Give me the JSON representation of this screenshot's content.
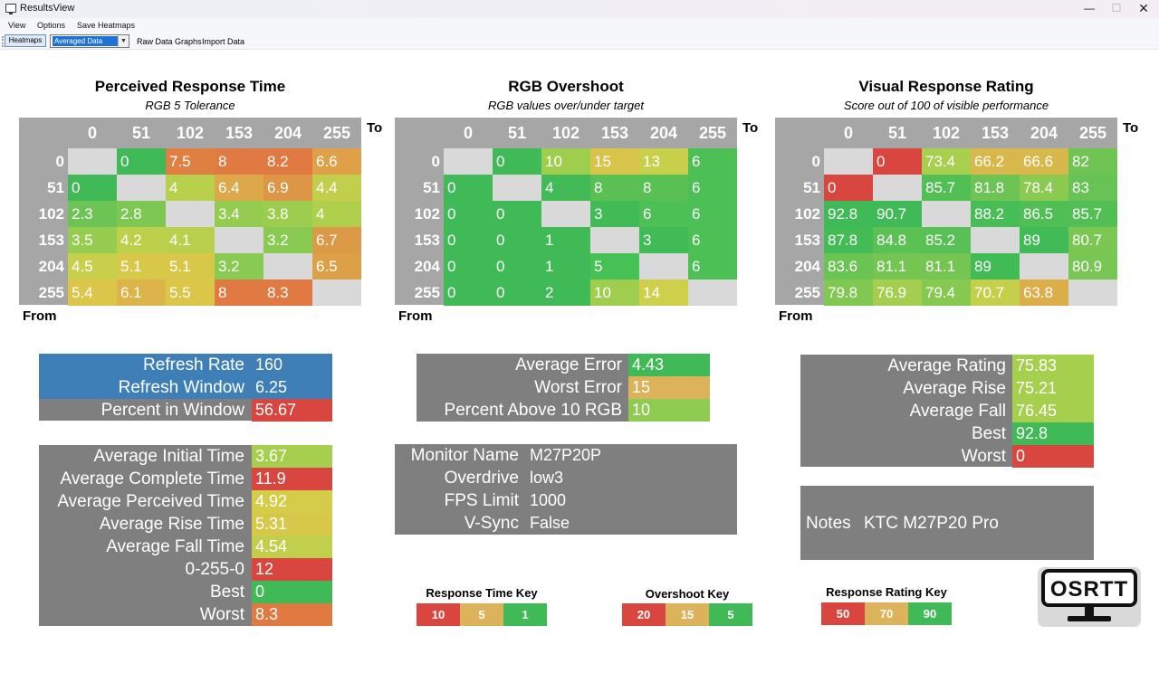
{
  "window": {
    "title": "ResultsView",
    "min": "—",
    "max": "☐",
    "close": "✕"
  },
  "menu": {
    "view": "View",
    "options": "Options",
    "save": "Save Heatmaps"
  },
  "toolbar": {
    "heatmaps": "Heatmaps",
    "select_value": "Averaged Data",
    "select_arrow": "▼",
    "raw": "Raw Data Graphs",
    "import": "Import Data"
  },
  "colors": {
    "red": "#d9534f",
    "orange": "#e0823f",
    "orange2": "#e58a3c",
    "yellow": "#d9d15c",
    "lime": "#a4cf4f",
    "green": "#5cc05c",
    "green2": "#40bb55",
    "gray": "#7f7f7f",
    "blue": "#3f7fb8",
    "diag": "#d9d9d9"
  },
  "heatmaps": [
    {
      "title": "Perceived Response Time",
      "subtitle": "RGB 5 Tolerance",
      "to": "To",
      "from": "From",
      "cols": [
        "0",
        "51",
        "102",
        "153",
        "204",
        "255"
      ],
      "rows": [
        "0",
        "51",
        "102",
        "153",
        "204",
        "255"
      ],
      "cells": [
        [
          "",
          "0",
          "7.5",
          "8",
          "8.2",
          "6.6"
        ],
        [
          "0",
          "",
          "4",
          "6.4",
          "6.9",
          "4.4"
        ],
        [
          "2.3",
          "2.8",
          "",
          "3.4",
          "3.8",
          "4"
        ],
        [
          "3.5",
          "4.2",
          "4.1",
          "",
          "3.2",
          "6.7"
        ],
        [
          "4.5",
          "5.1",
          "5.1",
          "3.2",
          "",
          "6.5"
        ],
        [
          "5.4",
          "6.1",
          "5.5",
          "8",
          "8.3",
          ""
        ]
      ],
      "colors": [
        [
          "",
          "#3fba57",
          "#e07f42",
          "#e07a42",
          "#e07a42",
          "#e0a048"
        ],
        [
          "#3fba57",
          "",
          "#b8d04c",
          "#dca84a",
          "#dc9646",
          "#c2cf4c"
        ],
        [
          "#6dc454",
          "#7dc753",
          "",
          "#94cc50",
          "#9dcd4f",
          "#b0cf4d"
        ],
        [
          "#96cc50",
          "#bcd04c",
          "#b8d04c",
          "",
          "#88ca52",
          "#dc9a47"
        ],
        [
          "#c8d04b",
          "#d8c84a",
          "#d8c84a",
          "#88ca52",
          "",
          "#dca147"
        ],
        [
          "#dcc64a",
          "#dcb44a",
          "#dbc64a",
          "#e07a42",
          "#e07a42",
          ""
        ]
      ]
    },
    {
      "title": "RGB Overshoot",
      "subtitle": "RGB values over/under target",
      "to": "To",
      "from": "From",
      "cols": [
        "0",
        "51",
        "102",
        "153",
        "204",
        "255"
      ],
      "rows": [
        "0",
        "51",
        "102",
        "153",
        "204",
        "255"
      ],
      "cells": [
        [
          "",
          "0",
          "10",
          "15",
          "13",
          "6"
        ],
        [
          "0",
          "",
          "4",
          "8",
          "8",
          "6"
        ],
        [
          "0",
          "0",
          "",
          "3",
          "6",
          "6"
        ],
        [
          "0",
          "0",
          "1",
          "",
          "3",
          "6"
        ],
        [
          "0",
          "0",
          "1",
          "5",
          "",
          "6"
        ],
        [
          "0",
          "0",
          "2",
          "10",
          "14",
          ""
        ]
      ],
      "colors": [
        [
          "",
          "#3fba57",
          "#9fcd4e",
          "#d8c34b",
          "#c7cf4b",
          "#4cbf55"
        ],
        [
          "#3fba57",
          "",
          "#42bb56",
          "#59c154",
          "#59c154",
          "#4cbf55"
        ],
        [
          "#3fba57",
          "#3fba57",
          "",
          "#40bb56",
          "#4cbf55",
          "#4cbf55"
        ],
        [
          "#3fba57",
          "#3fba57",
          "#3fba57",
          "",
          "#40bb56",
          "#4cbf55"
        ],
        [
          "#3fba57",
          "#3fba57",
          "#3fba57",
          "#46c155",
          "",
          "#4cbf55"
        ],
        [
          "#3fba57",
          "#3fba57",
          "#3fba57",
          "#9fcd4e",
          "#ced04b",
          ""
        ]
      ]
    },
    {
      "title": "Visual Response Rating",
      "subtitle": "Score out of 100 of visible performance",
      "to": "To",
      "from": "From",
      "cols": [
        "0",
        "51",
        "102",
        "153",
        "204",
        "255"
      ],
      "rows": [
        "0",
        "51",
        "102",
        "153",
        "204",
        "255"
      ],
      "cells": [
        [
          "",
          "0",
          "73.4",
          "66.2",
          "66.6",
          "82"
        ],
        [
          "0",
          "",
          "85.7",
          "81.8",
          "78.4",
          "83"
        ],
        [
          "92.8",
          "90.7",
          "",
          "88.2",
          "86.5",
          "85.7"
        ],
        [
          "87.8",
          "84.8",
          "85.2",
          "",
          "89",
          "80.7"
        ],
        [
          "83.6",
          "81.1",
          "81.1",
          "89",
          "",
          "80.9"
        ],
        [
          "79.8",
          "76.9",
          "79.4",
          "70.7",
          "63.8",
          ""
        ]
      ],
      "colors": [
        [
          "",
          "#d9463f",
          "#a9cf4e",
          "#d8b84b",
          "#d8b84b",
          "#6fc454"
        ],
        [
          "#d9463f",
          "",
          "#52bf55",
          "#6dc454",
          "#8bca51",
          "#66c354"
        ],
        [
          "#3fba57",
          "#3fba57",
          "",
          "#47bd55",
          "#4ebe55",
          "#52bf55"
        ],
        [
          "#44bc56",
          "#5cc154",
          "#58c055",
          "",
          "#40bb56",
          "#7bc752"
        ],
        [
          "#6ac454",
          "#75c553",
          "#75c553",
          "#40bb56",
          "",
          "#78c653"
        ],
        [
          "#80c852",
          "#a5ce4e",
          "#86c951",
          "#c6cf4b",
          "#dcae49",
          ""
        ]
      ]
    }
  ],
  "panel_refresh": {
    "rows": [
      {
        "label": "Refresh Rate",
        "value": "160",
        "color": "#3f7fb8"
      },
      {
        "label": "Refresh Window",
        "value": "6.25",
        "color": "#3f7fb8"
      },
      {
        "label": "Percent in Window",
        "value": "56.67",
        "color": "#d9463f"
      }
    ]
  },
  "panel_response": {
    "rows": [
      {
        "label": "Average Initial Time",
        "value": "3.67",
        "color": "#a6cf4e"
      },
      {
        "label": "Average Complete Time",
        "value": "11.9",
        "color": "#d9463f"
      },
      {
        "label": "Average Perceived Time",
        "value": "4.92",
        "color": "#d5cc4a"
      },
      {
        "label": "Average Rise Time",
        "value": "5.31",
        "color": "#d8c84a"
      },
      {
        "label": "Average Fall Time",
        "value": "4.54",
        "color": "#c2cf4c"
      },
      {
        "label": "0-255-0",
        "value": "12",
        "color": "#d9463f"
      },
      {
        "label": "Best",
        "value": "0",
        "color": "#3fba57"
      },
      {
        "label": "Worst",
        "value": "8.3",
        "color": "#e07a42"
      }
    ]
  },
  "panel_error": {
    "rows": [
      {
        "label": "Average Error",
        "value": "4.43",
        "color": "#3fba57"
      },
      {
        "label": "Worst Error",
        "value": "15",
        "color": "#dcb35a"
      },
      {
        "label": "Percent Above 10 RGB",
        "value": "10",
        "color": "#8dcb51"
      }
    ]
  },
  "panel_monitor": {
    "rows": [
      {
        "label": "Monitor Name",
        "value": "M27P20P"
      },
      {
        "label": "Overdrive",
        "value": "low3"
      },
      {
        "label": "FPS Limit",
        "value": "1000"
      },
      {
        "label": "V-Sync",
        "value": "False"
      }
    ]
  },
  "panel_rating": {
    "rows": [
      {
        "label": "Average Rating",
        "value": "75.83",
        "color": "#a6cf4e"
      },
      {
        "label": "Average Rise",
        "value": "75.21",
        "color": "#a6cf4e"
      },
      {
        "label": "Average Fall",
        "value": "76.45",
        "color": "#a6cf4e"
      },
      {
        "label": "Best",
        "value": "92.8",
        "color": "#3fba57"
      },
      {
        "label": "Worst",
        "value": "0",
        "color": "#d9463f"
      }
    ]
  },
  "notes": {
    "label": "Notes",
    "value": "KTC M27P20 Pro"
  },
  "keys": [
    {
      "title": "Response Time Key",
      "cells": [
        {
          "text": "10",
          "color": "#d9463f"
        },
        {
          "text": "5",
          "color": "#dcb35a"
        },
        {
          "text": "1",
          "color": "#3fba57"
        }
      ]
    },
    {
      "title": "Overshoot Key",
      "cells": [
        {
          "text": "20",
          "color": "#d9463f"
        },
        {
          "text": "15",
          "color": "#dcb35a"
        },
        {
          "text": "5",
          "color": "#3fba57"
        }
      ]
    },
    {
      "title": "Response Rating Key",
      "cells": [
        {
          "text": "50",
          "color": "#d9463f"
        },
        {
          "text": "70",
          "color": "#dcb35a"
        },
        {
          "text": "90",
          "color": "#3fba57"
        }
      ]
    }
  ],
  "logo": {
    "text": "OSRTT"
  }
}
